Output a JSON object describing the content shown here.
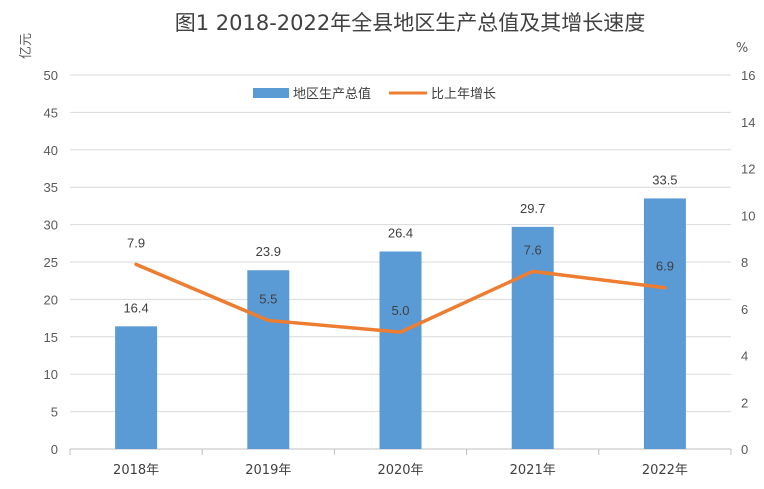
{
  "chart_data": {
    "type": "bar",
    "title": "图1  2018-2022年全县地区生产总值及其增长速度",
    "ylabel_left": "亿元",
    "ylabel_right": "%",
    "categories": [
      "2018年",
      "2019年",
      "2020年",
      "2021年",
      "2022年"
    ],
    "ylim_left": [
      0,
      50
    ],
    "yticks_left": [
      "0",
      "5",
      "10",
      "15",
      "20",
      "25",
      "30",
      "35",
      "40",
      "45",
      "50"
    ],
    "ylim_right": [
      0,
      16
    ],
    "yticks_right": [
      "0",
      "2",
      "4",
      "6",
      "8",
      "10",
      "12",
      "14",
      "16"
    ],
    "grid": true,
    "legend_position": "top",
    "series": [
      {
        "name": "地区生产总值",
        "type": "bar",
        "axis": "left",
        "color": "#5B9BD5",
        "values": [
          16.4,
          23.9,
          26.4,
          29.7,
          33.5
        ],
        "labels": [
          "16.4",
          "23.9",
          "26.4",
          "29.7",
          "33.5"
        ]
      },
      {
        "name": "比上年增长",
        "type": "line",
        "axis": "right",
        "color": "#ED7D31",
        "values": [
          7.9,
          5.5,
          5.0,
          7.6,
          6.9
        ],
        "labels": [
          "7.9",
          "5.5",
          "5.0",
          "7.6",
          "6.9"
        ]
      }
    ]
  }
}
